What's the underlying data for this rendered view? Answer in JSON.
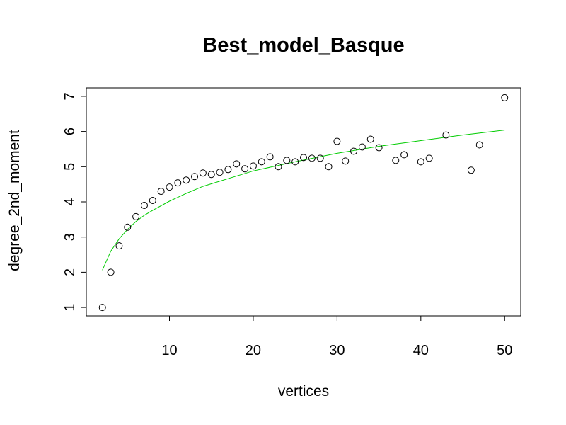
{
  "chart_data": {
    "type": "scatter",
    "title": "Best_model_Basque",
    "xlabel": "vertices",
    "ylabel": "degree_2nd_moment",
    "xlim": [
      0.08,
      51.92
    ],
    "ylim": [
      0.76,
      7.24
    ],
    "x_ticks": [
      10,
      20,
      30,
      40,
      50
    ],
    "y_ticks": [
      1,
      2,
      3,
      4,
      5,
      6,
      7
    ],
    "grid": false,
    "points": {
      "x": [
        2,
        3,
        4,
        5,
        6,
        7,
        8,
        9,
        10,
        11,
        12,
        13,
        14,
        15,
        16,
        17,
        18,
        19,
        20,
        21,
        22,
        23,
        24,
        25,
        26,
        27,
        28,
        29,
        30,
        31,
        32,
        33,
        34,
        35,
        37,
        38,
        40,
        41,
        43,
        46,
        47,
        50
      ],
      "y": [
        1.0,
        2.0,
        2.75,
        3.28,
        3.58,
        3.9,
        4.04,
        4.3,
        4.42,
        4.54,
        4.62,
        4.72,
        4.82,
        4.78,
        4.84,
        4.92,
        5.08,
        4.94,
        5.02,
        5.14,
        5.28,
        5.0,
        5.18,
        5.14,
        5.26,
        5.24,
        5.24,
        5.0,
        5.72,
        5.16,
        5.44,
        5.56,
        5.78,
        5.54,
        5.18,
        5.34,
        5.14,
        5.24,
        5.9,
        4.9,
        5.62,
        6.96
      ],
      "color": "#000000"
    },
    "fit_line": {
      "x": [
        2,
        3,
        4,
        5,
        6,
        7,
        8,
        10,
        12,
        14,
        17,
        20,
        25,
        30,
        35,
        40,
        45,
        50
      ],
      "y": [
        2.06,
        2.6,
        2.95,
        3.22,
        3.44,
        3.62,
        3.76,
        4.02,
        4.24,
        4.44,
        4.66,
        4.88,
        5.14,
        5.38,
        5.58,
        5.74,
        5.9,
        6.04
      ],
      "color": "#00cc00"
    }
  }
}
